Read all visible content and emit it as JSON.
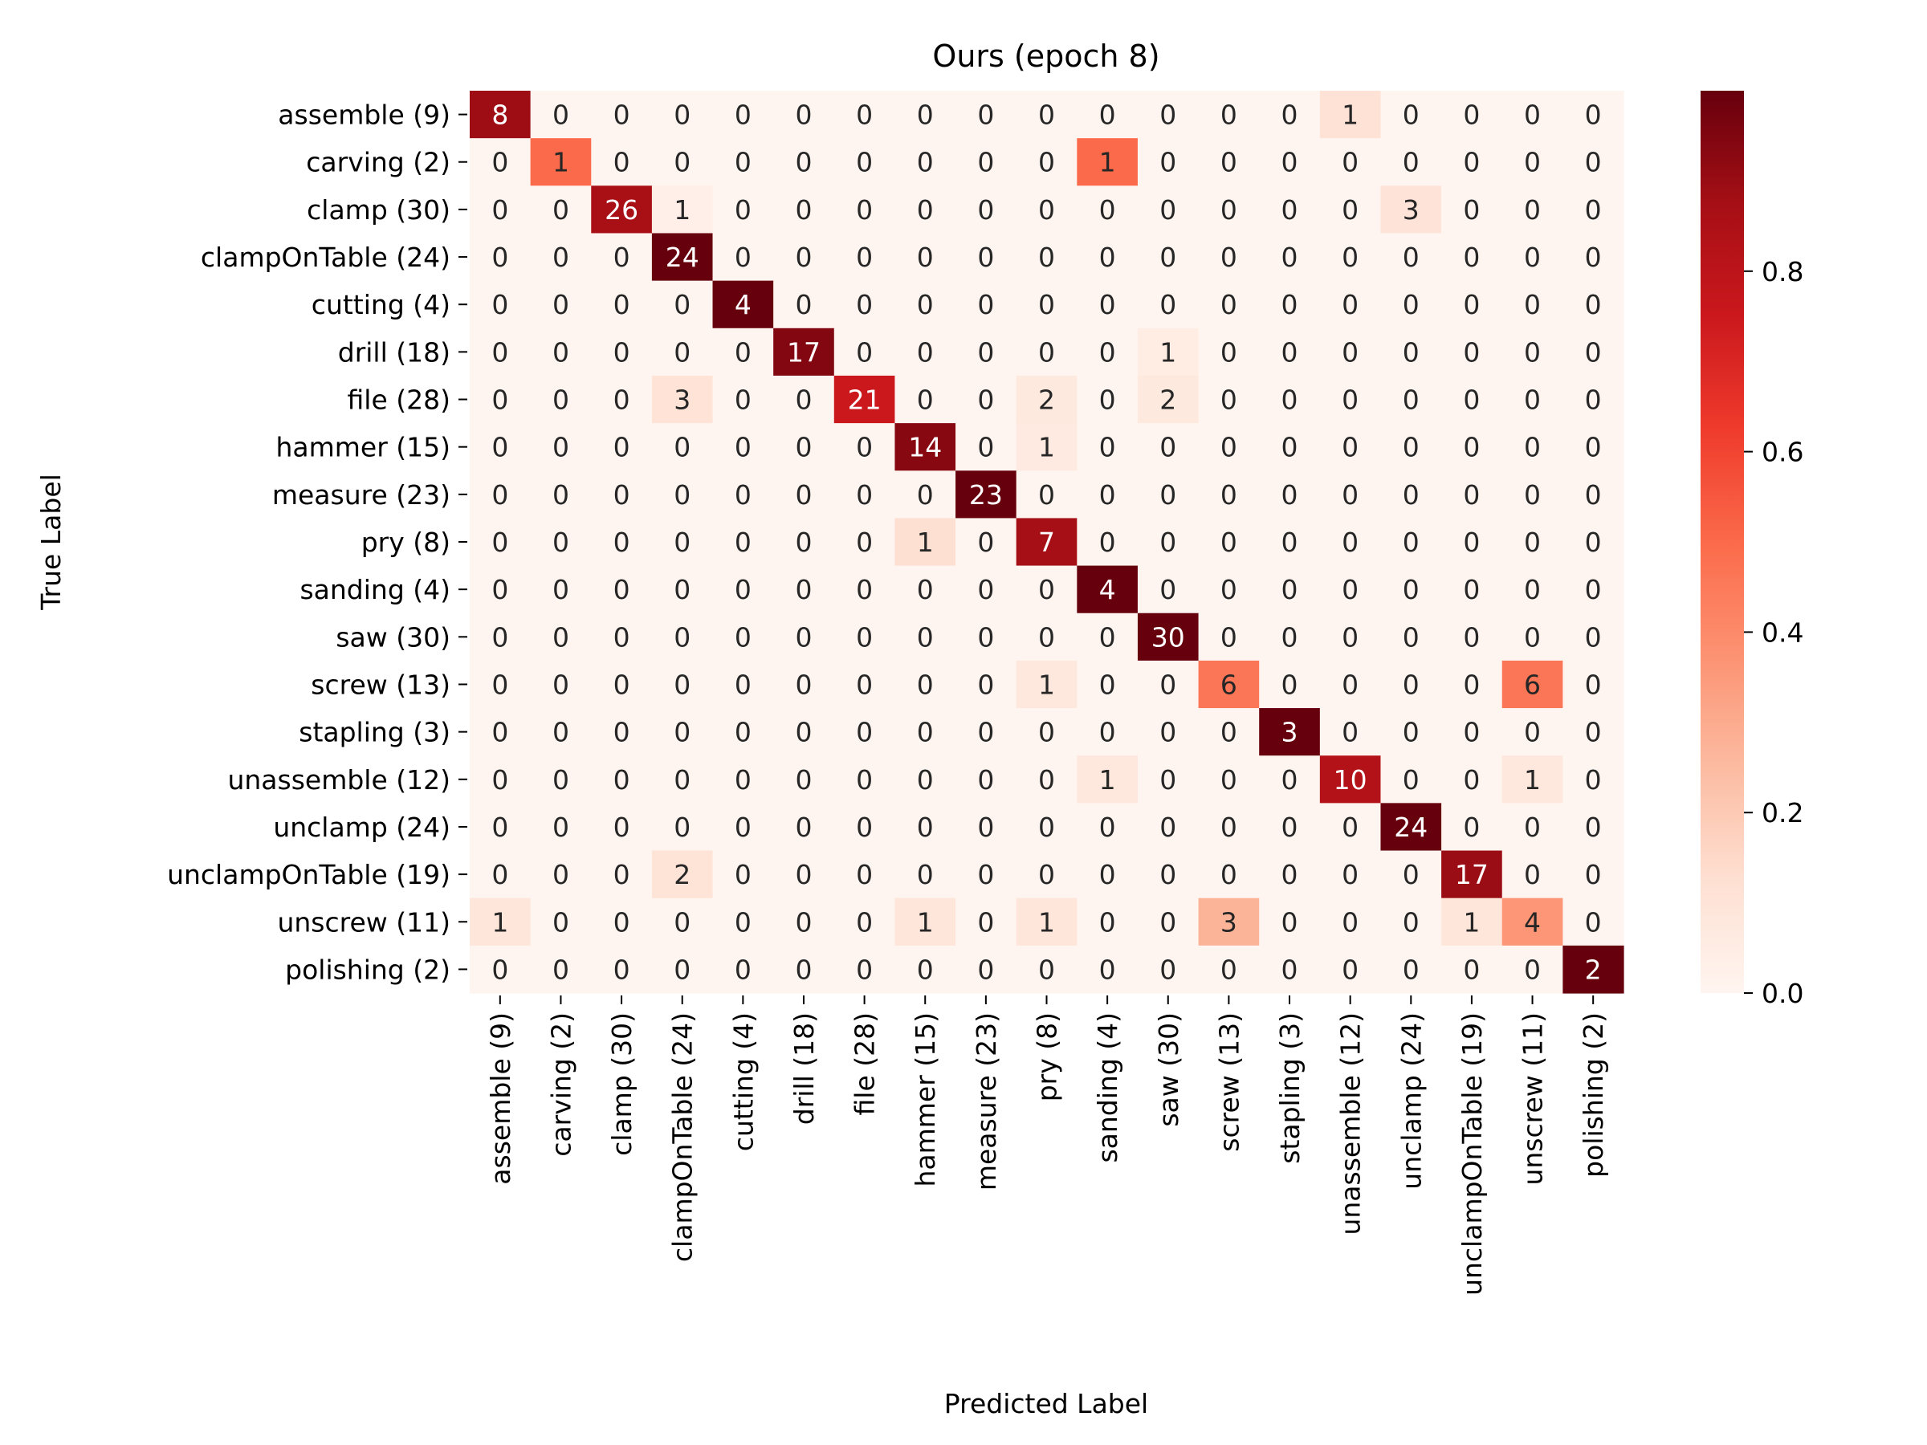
{
  "chart_data": {
    "type": "heatmap",
    "title": "Ours (epoch 8)",
    "xlabel": "Predicted Label",
    "ylabel": "True Label",
    "row_labels": [
      "assemble (9)",
      "carving (2)",
      "clamp (30)",
      "clampOnTable (24)",
      "cutting (4)",
      "drill (18)",
      "file (28)",
      "hammer (15)",
      "measure (23)",
      "pry (8)",
      "sanding (4)",
      "saw (30)",
      "screw (13)",
      "stapling (3)",
      "unassemble (12)",
      "unclamp (24)",
      "unclampOnTable (19)",
      "unscrew (11)",
      "polishing (2)"
    ],
    "col_labels": [
      "assemble (9)",
      "carving (2)",
      "clamp (30)",
      "clampOnTable (24)",
      "cutting (4)",
      "drill (18)",
      "file (28)",
      "hammer (15)",
      "measure (23)",
      "pry (8)",
      "sanding (4)",
      "saw (30)",
      "screw (13)",
      "stapling (3)",
      "unassemble (12)",
      "unclamp (24)",
      "unclampOnTable (19)",
      "unscrew (11)",
      "polishing (2)"
    ],
    "matrix": [
      [
        8,
        0,
        0,
        0,
        0,
        0,
        0,
        0,
        0,
        0,
        0,
        0,
        0,
        0,
        1,
        0,
        0,
        0,
        0
      ],
      [
        0,
        1,
        0,
        0,
        0,
        0,
        0,
        0,
        0,
        0,
        1,
        0,
        0,
        0,
        0,
        0,
        0,
        0,
        0
      ],
      [
        0,
        0,
        26,
        1,
        0,
        0,
        0,
        0,
        0,
        0,
        0,
        0,
        0,
        0,
        0,
        3,
        0,
        0,
        0
      ],
      [
        0,
        0,
        0,
        24,
        0,
        0,
        0,
        0,
        0,
        0,
        0,
        0,
        0,
        0,
        0,
        0,
        0,
        0,
        0
      ],
      [
        0,
        0,
        0,
        0,
        4,
        0,
        0,
        0,
        0,
        0,
        0,
        0,
        0,
        0,
        0,
        0,
        0,
        0,
        0
      ],
      [
        0,
        0,
        0,
        0,
        0,
        17,
        0,
        0,
        0,
        0,
        0,
        1,
        0,
        0,
        0,
        0,
        0,
        0,
        0
      ],
      [
        0,
        0,
        0,
        3,
        0,
        0,
        21,
        0,
        0,
        2,
        0,
        2,
        0,
        0,
        0,
        0,
        0,
        0,
        0
      ],
      [
        0,
        0,
        0,
        0,
        0,
        0,
        0,
        14,
        0,
        1,
        0,
        0,
        0,
        0,
        0,
        0,
        0,
        0,
        0
      ],
      [
        0,
        0,
        0,
        0,
        0,
        0,
        0,
        0,
        23,
        0,
        0,
        0,
        0,
        0,
        0,
        0,
        0,
        0,
        0
      ],
      [
        0,
        0,
        0,
        0,
        0,
        0,
        0,
        1,
        0,
        7,
        0,
        0,
        0,
        0,
        0,
        0,
        0,
        0,
        0
      ],
      [
        0,
        0,
        0,
        0,
        0,
        0,
        0,
        0,
        0,
        0,
        4,
        0,
        0,
        0,
        0,
        0,
        0,
        0,
        0
      ],
      [
        0,
        0,
        0,
        0,
        0,
        0,
        0,
        0,
        0,
        0,
        0,
        30,
        0,
        0,
        0,
        0,
        0,
        0,
        0
      ],
      [
        0,
        0,
        0,
        0,
        0,
        0,
        0,
        0,
        0,
        1,
        0,
        0,
        6,
        0,
        0,
        0,
        0,
        6,
        0
      ],
      [
        0,
        0,
        0,
        0,
        0,
        0,
        0,
        0,
        0,
        0,
        0,
        0,
        0,
        3,
        0,
        0,
        0,
        0,
        0
      ],
      [
        0,
        0,
        0,
        0,
        0,
        0,
        0,
        0,
        0,
        0,
        1,
        0,
        0,
        0,
        10,
        0,
        0,
        1,
        0
      ],
      [
        0,
        0,
        0,
        0,
        0,
        0,
        0,
        0,
        0,
        0,
        0,
        0,
        0,
        0,
        0,
        24,
        0,
        0,
        0
      ],
      [
        0,
        0,
        0,
        2,
        0,
        0,
        0,
        0,
        0,
        0,
        0,
        0,
        0,
        0,
        0,
        0,
        17,
        0,
        0
      ],
      [
        1,
        0,
        0,
        0,
        0,
        0,
        0,
        1,
        0,
        1,
        0,
        0,
        3,
        0,
        0,
        0,
        1,
        4,
        0
      ],
      [
        0,
        0,
        0,
        0,
        0,
        0,
        0,
        0,
        0,
        0,
        0,
        0,
        0,
        0,
        0,
        0,
        0,
        0,
        2
      ]
    ],
    "color_scale": "Reds",
    "color_stops": [
      "#fff5f0",
      "#fee0d2",
      "#fcbba1",
      "#fc9272",
      "#fb6a4a",
      "#ef3b2c",
      "#cb181d",
      "#a50f15",
      "#67000d"
    ],
    "colorbar_range": [
      0,
      1
    ],
    "colorbar_ticks": [
      "0.0",
      "0.2",
      "0.4",
      "0.6",
      "0.8"
    ]
  }
}
